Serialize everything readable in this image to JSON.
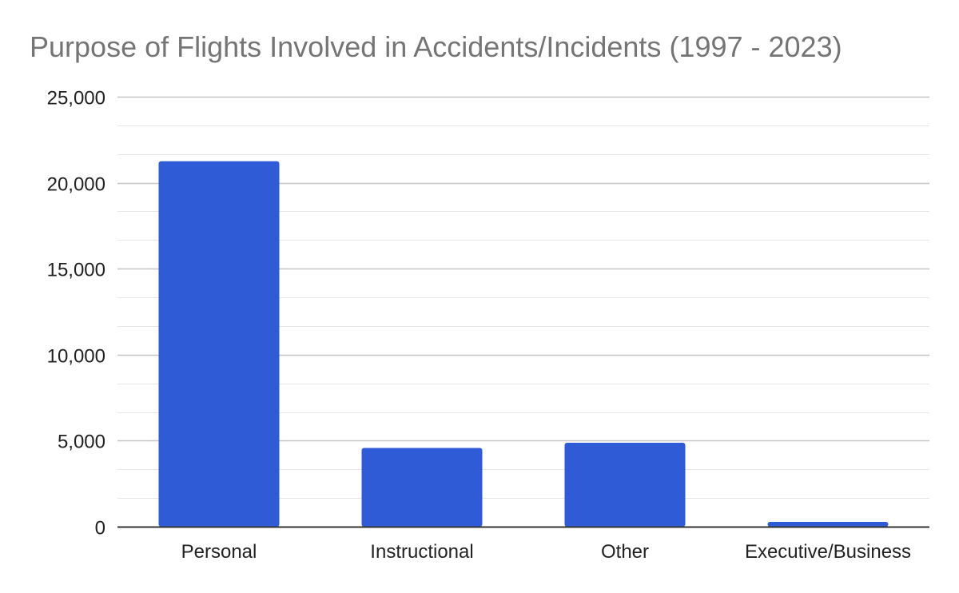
{
  "chart_data": {
    "type": "bar",
    "title": "Purpose of Flights Involved in Accidents/Incidents (1997 - 2023)",
    "categories": [
      "Personal",
      "Instructional",
      "Other",
      "Executive/Business"
    ],
    "values": [
      21250,
      4580,
      4880,
      280
    ],
    "ylim": [
      0,
      25000
    ],
    "yticks": [
      0,
      5000,
      10000,
      15000,
      20000,
      25000
    ],
    "ytick_labels": [
      "0",
      "5,000",
      "10,000",
      "15,000",
      "20,000",
      "25,000"
    ],
    "xlabel": "",
    "ylabel": "",
    "bar_color": "#305bd6",
    "grid": true,
    "minor_grid": true,
    "legend": false
  }
}
